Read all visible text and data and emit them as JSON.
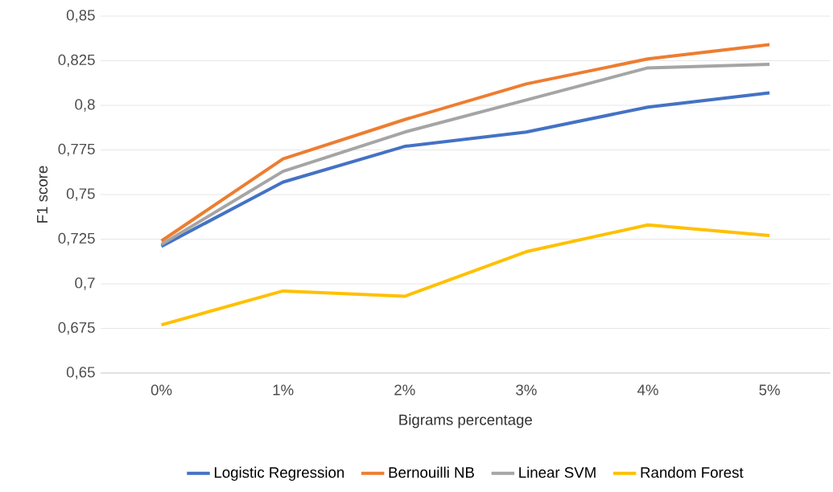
{
  "chart_data": {
    "type": "line",
    "xlabel": "Bigrams percentage",
    "ylabel": "F1 score",
    "categories": [
      "0%",
      "1%",
      "2%",
      "3%",
      "4%",
      "5%"
    ],
    "series": [
      {
        "name": "Logistic Regression",
        "color": "#4472c4",
        "values": [
          0.721,
          0.757,
          0.777,
          0.785,
          0.799,
          0.807
        ]
      },
      {
        "name": "Bernouilli NB",
        "color": "#ed7d31",
        "values": [
          0.724,
          0.77,
          0.792,
          0.812,
          0.826,
          0.834
        ]
      },
      {
        "name": "Linear SVM",
        "color": "#a5a5a5",
        "values": [
          0.722,
          0.763,
          0.785,
          0.803,
          0.821,
          0.823
        ]
      },
      {
        "name": "Random Forest",
        "color": "#ffc000",
        "values": [
          0.677,
          0.696,
          0.693,
          0.718,
          0.733,
          0.727
        ]
      }
    ],
    "ylim": [
      0.65,
      0.85
    ],
    "yticks": [
      {
        "value": 0.65,
        "label": "0,65"
      },
      {
        "value": 0.675,
        "label": "0,675"
      },
      {
        "value": 0.7,
        "label": "0,7"
      },
      {
        "value": 0.725,
        "label": "0,725"
      },
      {
        "value": 0.75,
        "label": "0,75"
      },
      {
        "value": 0.775,
        "label": "0,775"
      },
      {
        "value": 0.8,
        "label": "0,8"
      },
      {
        "value": 0.825,
        "label": "0,825"
      },
      {
        "value": 0.85,
        "label": "0,85"
      }
    ],
    "grid": "y",
    "legend": "bottom",
    "marker": "none",
    "line_style": "solid"
  }
}
